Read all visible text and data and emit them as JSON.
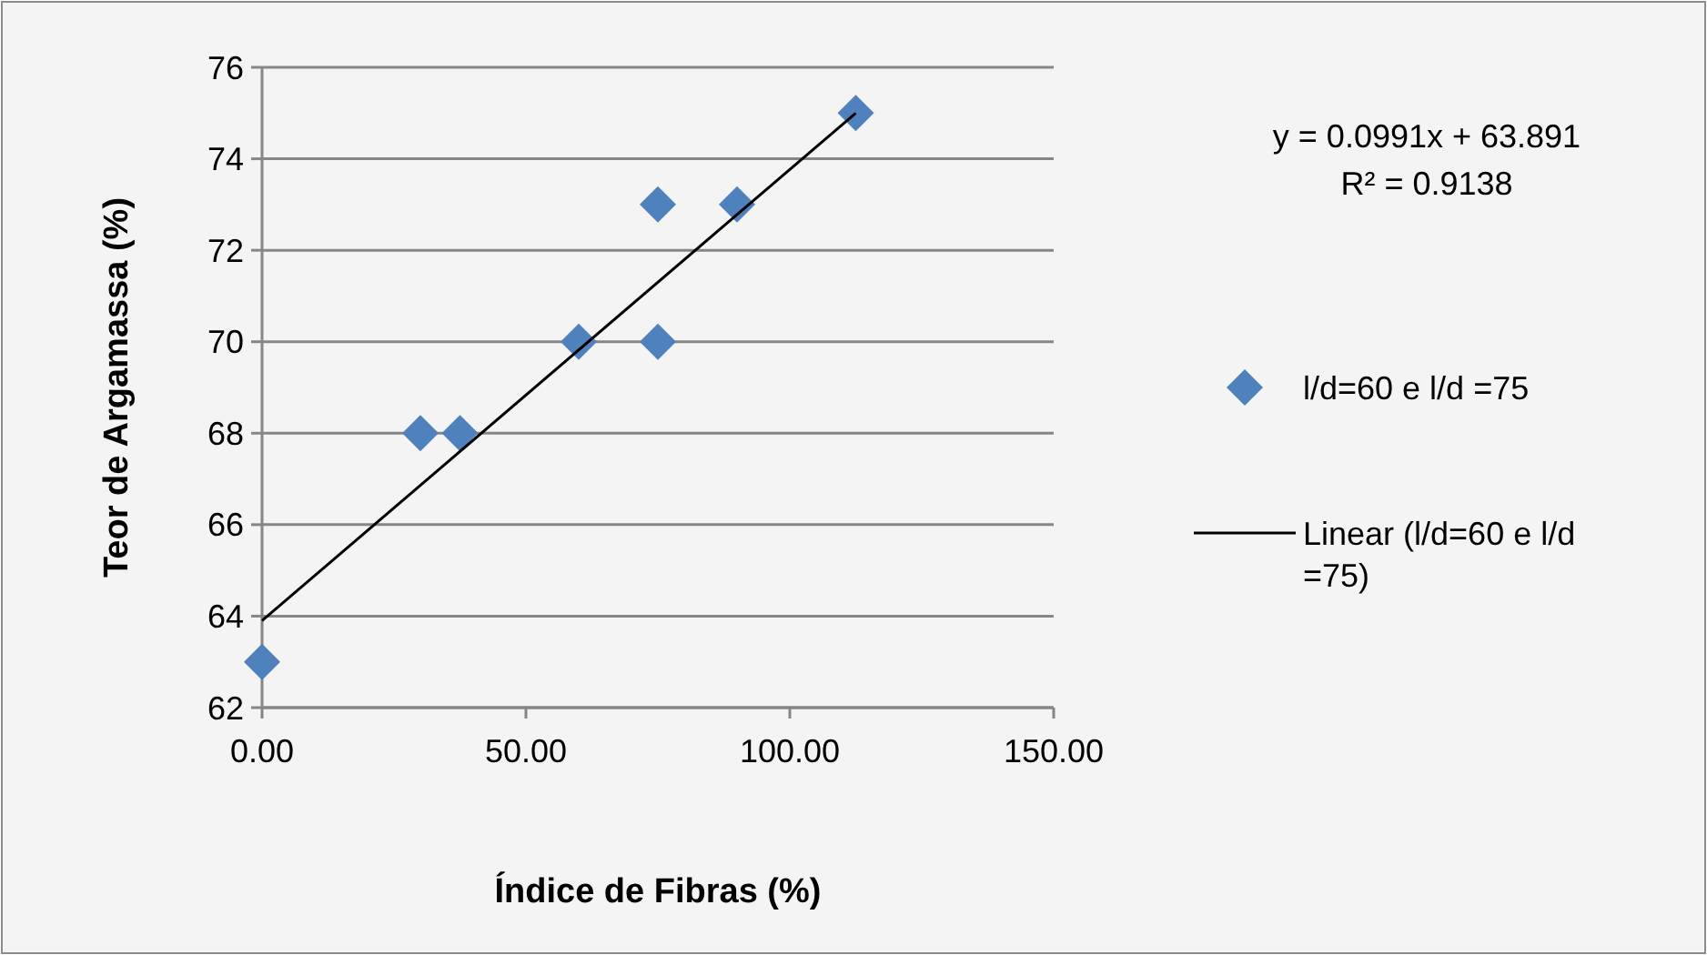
{
  "chart_data": {
    "type": "scatter",
    "xlabel": "Índice de Fibras (%)",
    "ylabel": "Teor de Argamassa (%)",
    "annotations": [
      "y = 0.0991x + 63.891",
      "R² = 0.9138"
    ],
    "series": [
      {
        "name": "l/d=60 e l/d =75",
        "color": "#4f81bd",
        "marker": "diamond",
        "x": [
          0,
          30,
          37.5,
          60,
          75,
          75,
          90,
          112.5
        ],
        "values": [
          63,
          68,
          68,
          70,
          70,
          73,
          73,
          75
        ]
      },
      {
        "name": "Linear (l/d=60 e l/d =75)",
        "type": "line",
        "color": "#000000",
        "marker": "none",
        "line_style": "solid",
        "x": [
          0,
          112.5
        ],
        "values": [
          63.9,
          75.0
        ]
      }
    ],
    "xlim": [
      0,
      150
    ],
    "xticks": [
      {
        "value": 0,
        "label": "0.00"
      },
      {
        "value": 50,
        "label": "50.00"
      },
      {
        "value": 100,
        "label": "100.00"
      },
      {
        "value": 150,
        "label": "150.00"
      }
    ],
    "ylim": [
      62,
      76
    ],
    "yticks": [
      62,
      64,
      66,
      68,
      70,
      72,
      74,
      76
    ],
    "grid": "y",
    "legend": "right"
  }
}
